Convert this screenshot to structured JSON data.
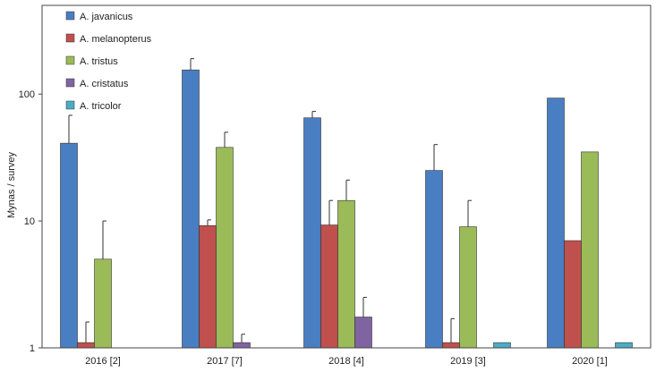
{
  "chart_data": {
    "type": "bar",
    "title": "",
    "xlabel": "",
    "ylabel": "Mynas / survey",
    "yscale": "log",
    "ylim": [
      1,
      500
    ],
    "yticks": [
      {
        "value": 1,
        "label": "1"
      },
      {
        "value": 10,
        "label": "10"
      },
      {
        "value": 100,
        "label": "100"
      }
    ],
    "categories": [
      "2016 [2]",
      "2017 [7]",
      "2018 [4]",
      "2019 [3]",
      "2020 [1]"
    ],
    "legend_position": "top-left",
    "grid": false,
    "series": [
      {
        "name": "A. javanicus",
        "color": "#4a7ec2",
        "values": [
          41,
          155,
          65,
          25,
          93
        ],
        "errors": [
          68,
          190,
          73,
          40,
          null
        ]
      },
      {
        "name": "A. melanopterus",
        "color": "#c0504d",
        "values": [
          1.1,
          9.2,
          9.3,
          1.1,
          7
        ],
        "errors": [
          1.6,
          10.2,
          14.5,
          1.7,
          null
        ]
      },
      {
        "name": "A. tristus",
        "color": "#9bbb59",
        "values": [
          5,
          38,
          14.5,
          9,
          35
        ],
        "errors": [
          10,
          50,
          21,
          14.5,
          null
        ]
      },
      {
        "name": "A. cristatus",
        "color": "#8064a2",
        "values": [
          null,
          1.1,
          1.75,
          null,
          null
        ],
        "errors": [
          null,
          1.28,
          2.5,
          null,
          null
        ]
      },
      {
        "name": "A. tricolor",
        "color": "#4bacc6",
        "values": [
          null,
          null,
          null,
          1.1,
          1.1
        ],
        "errors": [
          null,
          null,
          null,
          null,
          null
        ]
      }
    ]
  }
}
